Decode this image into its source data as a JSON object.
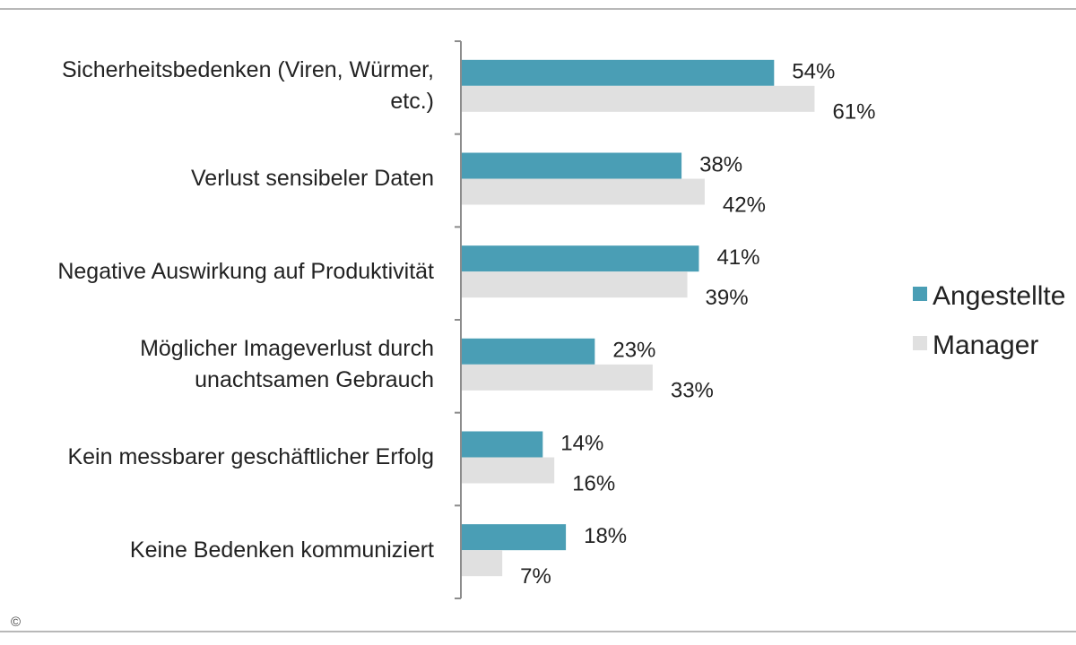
{
  "chart_data": {
    "type": "bar",
    "orientation": "horizontal",
    "title": "",
    "xlabel": "",
    "ylabel": "",
    "xlim": [
      0,
      100
    ],
    "grid": false,
    "legend_position": "right",
    "categories": [
      "Sicherheitsbedenken (Viren, Würmer, etc.)",
      "Verlust sensibeler Daten",
      "Negative Auswirkung auf Produktivität",
      "Möglicher Imageverlust durch unachtsamen Gebrauch",
      "Kein messbarer geschäftlicher Erfolg",
      "Keine Bedenken kommunizier"
    ],
    "category_lines": [
      [
        "Sicherheitsbedenken (Viren, Würmer,",
        "etc.)"
      ],
      [
        "Verlust sensibeler Daten"
      ],
      [
        "Negative Auswirkung auf Produktivität"
      ],
      [
        "Möglicher Imageverlust durch",
        "unachtsamen Gebrauch"
      ],
      [
        "Kein messbarer geschäftlicher Erfolg"
      ],
      [
        "Keine Bedenken kommuniziert"
      ]
    ],
    "series": [
      {
        "name": "Angestellte",
        "color": "#4a9eb5",
        "values": [
          54,
          38,
          41,
          23,
          14,
          18
        ],
        "labels": [
          "54%",
          "38%",
          "41%",
          "23%",
          "14%",
          "18%"
        ]
      },
      {
        "name": "Manager",
        "color": "#e0e0e0",
        "values": [
          61,
          42,
          39,
          33,
          16,
          7
        ],
        "labels": [
          "61%",
          "42%",
          "39%",
          "33%",
          "16%",
          "7%"
        ]
      }
    ]
  },
  "footer": {
    "copyright": "©"
  }
}
